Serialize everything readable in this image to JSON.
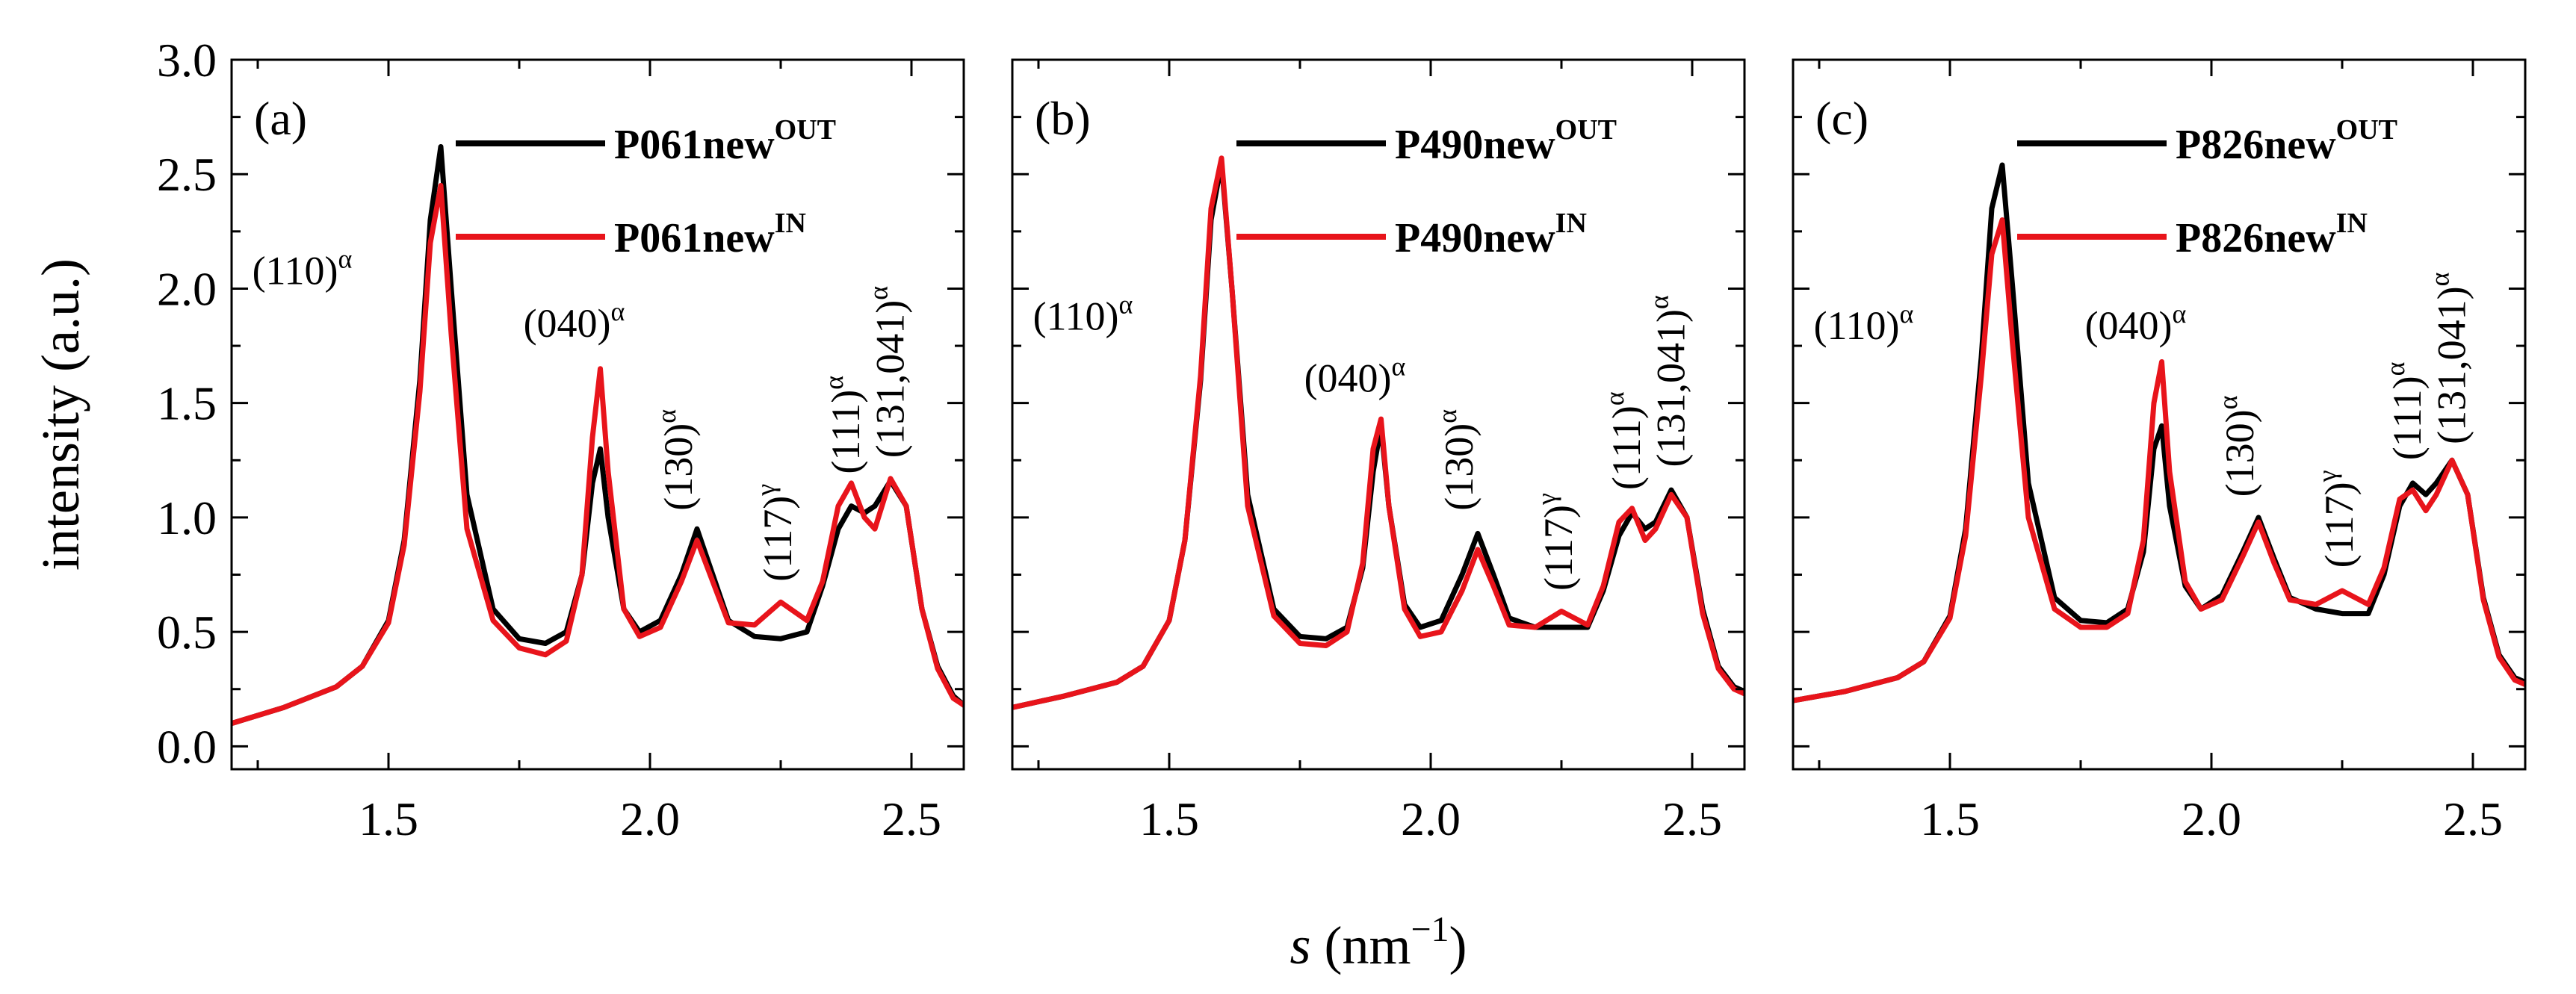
{
  "chart_data": {
    "type": "line",
    "ylabel": "intensity (a.u.)",
    "xlabel_var": "s",
    "xlabel_unit": "(nm",
    "xlabel_exp": "−1",
    "xlabel_close": ")",
    "xlim": [
      1.2,
      2.6
    ],
    "ylim": [
      -0.1,
      3.0
    ],
    "xticks": [
      1.5,
      2.0,
      2.5
    ],
    "xtick_labels": [
      "1.5",
      "2.0",
      "2.5"
    ],
    "yticks": [
      0.0,
      0.5,
      1.0,
      1.5,
      2.0,
      2.5,
      3.0
    ],
    "ytick_labels": [
      "0.0",
      "0.5",
      "1.0",
      "1.5",
      "2.0",
      "2.5",
      "3.0"
    ],
    "colors": {
      "OUT": "#000000",
      "IN": "#e8141b"
    },
    "panels": [
      {
        "label": "(a)",
        "legend": [
          {
            "key": "OUT",
            "name": "P061new",
            "sup": "OUT"
          },
          {
            "key": "IN",
            "name": "P061new",
            "sup": "IN"
          }
        ],
        "peaks": [
          {
            "text": "(110)",
            "sup": "α",
            "x": 1.335,
            "y": 2.02,
            "rot": 0
          },
          {
            "text": "(040)",
            "sup": "α",
            "x": 1.855,
            "y": 1.79,
            "rot": 0
          },
          {
            "text": "(130)",
            "sup": "α",
            "x": 2.08,
            "y": 1.03,
            "rot": -90
          },
          {
            "text": "(117)",
            "sup": "γ",
            "x": 2.27,
            "y": 0.72,
            "rot": -90
          },
          {
            "text": "(111)",
            "sup": "α",
            "x": 2.4,
            "y": 1.19,
            "rot": -90
          },
          {
            "text": "(131,041)",
            "sup": "α",
            "x": 2.485,
            "y": 1.26,
            "rot": -90
          }
        ],
        "series": [
          {
            "key": "OUT",
            "x": [
              1.2,
              1.3,
              1.4,
              1.45,
              1.5,
              1.53,
              1.56,
              1.58,
              1.6,
              1.62,
              1.65,
              1.7,
              1.75,
              1.8,
              1.84,
              1.87,
              1.89,
              1.905,
              1.92,
              1.95,
              1.98,
              2.02,
              2.06,
              2.09,
              2.12,
              2.15,
              2.2,
              2.25,
              2.3,
              2.33,
              2.36,
              2.385,
              2.41,
              2.43,
              2.46,
              2.49,
              2.52,
              2.55,
              2.58,
              2.6
            ],
            "y": [
              0.1,
              0.17,
              0.26,
              0.35,
              0.55,
              0.9,
              1.6,
              2.3,
              2.62,
              2.0,
              1.1,
              0.6,
              0.47,
              0.45,
              0.5,
              0.75,
              1.15,
              1.3,
              1.0,
              0.6,
              0.5,
              0.55,
              0.75,
              0.95,
              0.75,
              0.55,
              0.48,
              0.47,
              0.5,
              0.7,
              0.95,
              1.05,
              1.02,
              1.05,
              1.16,
              1.05,
              0.6,
              0.35,
              0.22,
              0.18
            ]
          },
          {
            "key": "IN",
            "x": [
              1.2,
              1.3,
              1.4,
              1.45,
              1.5,
              1.53,
              1.56,
              1.58,
              1.6,
              1.62,
              1.65,
              1.7,
              1.75,
              1.8,
              1.84,
              1.87,
              1.89,
              1.905,
              1.92,
              1.95,
              1.98,
              2.02,
              2.06,
              2.09,
              2.12,
              2.15,
              2.2,
              2.25,
              2.3,
              2.33,
              2.36,
              2.385,
              2.41,
              2.43,
              2.46,
              2.49,
              2.52,
              2.55,
              2.58,
              2.6
            ],
            "y": [
              0.1,
              0.17,
              0.26,
              0.35,
              0.54,
              0.88,
              1.55,
              2.2,
              2.45,
              1.8,
              0.95,
              0.55,
              0.43,
              0.4,
              0.46,
              0.75,
              1.35,
              1.65,
              1.2,
              0.6,
              0.48,
              0.52,
              0.72,
              0.9,
              0.72,
              0.54,
              0.53,
              0.63,
              0.55,
              0.72,
              1.05,
              1.15,
              1.0,
              0.95,
              1.17,
              1.05,
              0.6,
              0.34,
              0.21,
              0.18
            ]
          }
        ]
      },
      {
        "label": "(b)",
        "legend": [
          {
            "key": "OUT",
            "name": "P490new",
            "sup": "OUT"
          },
          {
            "key": "IN",
            "name": "P490new",
            "sup": "IN"
          }
        ],
        "peaks": [
          {
            "text": "(110)",
            "sup": "α",
            "x": 1.335,
            "y": 1.82,
            "rot": 0
          },
          {
            "text": "(040)",
            "sup": "α",
            "x": 1.855,
            "y": 1.55,
            "rot": 0
          },
          {
            "text": "(130)",
            "sup": "α",
            "x": 2.08,
            "y": 1.03,
            "rot": -90
          },
          {
            "text": "(117)",
            "sup": "γ",
            "x": 2.27,
            "y": 0.68,
            "rot": -90
          },
          {
            "text": "(111)",
            "sup": "α",
            "x": 2.4,
            "y": 1.12,
            "rot": -90
          },
          {
            "text": "(131,041)",
            "sup": "α",
            "x": 2.485,
            "y": 1.22,
            "rot": -90
          }
        ],
        "series": [
          {
            "key": "OUT",
            "x": [
              1.2,
              1.3,
              1.4,
              1.45,
              1.5,
              1.53,
              1.56,
              1.58,
              1.6,
              1.62,
              1.65,
              1.7,
              1.75,
              1.8,
              1.84,
              1.87,
              1.89,
              1.905,
              1.92,
              1.95,
              1.98,
              2.02,
              2.06,
              2.09,
              2.12,
              2.15,
              2.2,
              2.25,
              2.3,
              2.33,
              2.36,
              2.385,
              2.41,
              2.43,
              2.46,
              2.49,
              2.52,
              2.55,
              2.58,
              2.6
            ],
            "y": [
              0.17,
              0.22,
              0.28,
              0.35,
              0.55,
              0.9,
              1.6,
              2.3,
              2.55,
              2.0,
              1.1,
              0.6,
              0.48,
              0.47,
              0.52,
              0.78,
              1.2,
              1.4,
              1.05,
              0.62,
              0.52,
              0.55,
              0.75,
              0.93,
              0.75,
              0.56,
              0.52,
              0.52,
              0.52,
              0.68,
              0.92,
              1.02,
              0.95,
              0.98,
              1.12,
              1.0,
              0.6,
              0.35,
              0.26,
              0.24
            ]
          },
          {
            "key": "IN",
            "x": [
              1.2,
              1.3,
              1.4,
              1.45,
              1.5,
              1.53,
              1.56,
              1.58,
              1.6,
              1.62,
              1.65,
              1.7,
              1.75,
              1.8,
              1.84,
              1.87,
              1.89,
              1.905,
              1.92,
              1.95,
              1.98,
              2.02,
              2.06,
              2.09,
              2.12,
              2.15,
              2.2,
              2.25,
              2.3,
              2.33,
              2.36,
              2.385,
              2.41,
              2.43,
              2.46,
              2.49,
              2.52,
              2.55,
              2.58,
              2.6
            ],
            "y": [
              0.17,
              0.22,
              0.28,
              0.35,
              0.55,
              0.9,
              1.62,
              2.35,
              2.57,
              2.0,
              1.05,
              0.57,
              0.45,
              0.44,
              0.5,
              0.8,
              1.3,
              1.43,
              1.05,
              0.6,
              0.48,
              0.5,
              0.68,
              0.86,
              0.7,
              0.53,
              0.52,
              0.59,
              0.53,
              0.7,
              0.98,
              1.04,
              0.9,
              0.95,
              1.1,
              1.0,
              0.58,
              0.34,
              0.25,
              0.23
            ]
          }
        ]
      },
      {
        "label": "(c)",
        "legend": [
          {
            "key": "OUT",
            "name": "P826new",
            "sup": "OUT"
          },
          {
            "key": "IN",
            "name": "P826new",
            "sup": "IN"
          }
        ],
        "peaks": [
          {
            "text": "(110)",
            "sup": "α",
            "x": 1.335,
            "y": 1.78,
            "rot": 0
          },
          {
            "text": "(040)",
            "sup": "α",
            "x": 1.855,
            "y": 1.78,
            "rot": 0
          },
          {
            "text": "(130)",
            "sup": "α",
            "x": 2.08,
            "y": 1.09,
            "rot": -90
          },
          {
            "text": "(117)",
            "sup": "γ",
            "x": 2.27,
            "y": 0.78,
            "rot": -90
          },
          {
            "text": "(111)",
            "sup": "α",
            "x": 2.4,
            "y": 1.25,
            "rot": -90
          },
          {
            "text": "(131,041)",
            "sup": "α",
            "x": 2.485,
            "y": 1.32,
            "rot": -90
          }
        ],
        "series": [
          {
            "key": "OUT",
            "x": [
              1.2,
              1.3,
              1.4,
              1.45,
              1.5,
              1.53,
              1.56,
              1.58,
              1.6,
              1.62,
              1.65,
              1.7,
              1.75,
              1.8,
              1.84,
              1.87,
              1.89,
              1.905,
              1.92,
              1.95,
              1.98,
              2.02,
              2.06,
              2.09,
              2.12,
              2.15,
              2.2,
              2.25,
              2.3,
              2.33,
              2.36,
              2.385,
              2.41,
              2.43,
              2.46,
              2.49,
              2.52,
              2.55,
              2.58,
              2.6
            ],
            "y": [
              0.2,
              0.24,
              0.3,
              0.37,
              0.57,
              0.95,
              1.7,
              2.35,
              2.54,
              2.0,
              1.15,
              0.65,
              0.55,
              0.54,
              0.6,
              0.85,
              1.3,
              1.4,
              1.05,
              0.7,
              0.6,
              0.66,
              0.85,
              1.0,
              0.82,
              0.65,
              0.6,
              0.58,
              0.58,
              0.75,
              1.05,
              1.15,
              1.1,
              1.15,
              1.25,
              1.1,
              0.65,
              0.4,
              0.3,
              0.28
            ]
          },
          {
            "key": "IN",
            "x": [
              1.2,
              1.3,
              1.4,
              1.45,
              1.5,
              1.53,
              1.56,
              1.58,
              1.6,
              1.62,
              1.65,
              1.7,
              1.75,
              1.8,
              1.84,
              1.87,
              1.89,
              1.905,
              1.92,
              1.95,
              1.98,
              2.02,
              2.06,
              2.09,
              2.12,
              2.15,
              2.2,
              2.25,
              2.3,
              2.33,
              2.36,
              2.385,
              2.41,
              2.43,
              2.46,
              2.49,
              2.52,
              2.55,
              2.58,
              2.6
            ],
            "y": [
              0.2,
              0.24,
              0.3,
              0.37,
              0.56,
              0.92,
              1.62,
              2.15,
              2.3,
              1.75,
              1.0,
              0.6,
              0.52,
              0.52,
              0.58,
              0.9,
              1.5,
              1.68,
              1.2,
              0.72,
              0.6,
              0.64,
              0.83,
              0.98,
              0.8,
              0.64,
              0.62,
              0.68,
              0.62,
              0.78,
              1.08,
              1.12,
              1.03,
              1.1,
              1.25,
              1.1,
              0.64,
              0.39,
              0.29,
              0.27
            ]
          }
        ]
      }
    ]
  }
}
